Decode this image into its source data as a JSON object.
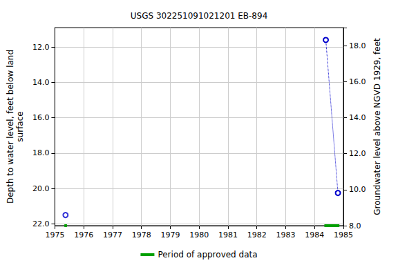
{
  "chart_data": {
    "type": "scatter",
    "title": "USGS 302251091021201 EB-894",
    "y_label": "Depth to water level, feet below land\nsurface",
    "y2_label": "Groundwater level above NGVD 1929, feet",
    "xlim": [
      1975,
      1985
    ],
    "xticks": [
      1975,
      1976,
      1977,
      1978,
      1979,
      1980,
      1981,
      1982,
      1983,
      1984,
      1985
    ],
    "ylim": [
      10.9,
      22.1
    ],
    "yticks": [
      {
        "value": 12,
        "label": "12.0"
      },
      {
        "value": 14,
        "label": "14.0"
      },
      {
        "value": 16,
        "label": "16.0"
      },
      {
        "value": 18,
        "label": "18.0"
      },
      {
        "value": 20,
        "label": "20.0"
      },
      {
        "value": 22,
        "label": "22.0"
      }
    ],
    "y2lim": [
      8,
      19
    ],
    "y2ticks": [
      {
        "value": 8,
        "label": "8.0"
      },
      {
        "value": 10,
        "label": "10.0"
      },
      {
        "value": 12,
        "label": "12.0"
      },
      {
        "value": 14,
        "label": "14.0"
      },
      {
        "value": 16,
        "label": "16.0"
      },
      {
        "value": 18,
        "label": "18.0"
      }
    ],
    "grid": true,
    "legend": "bottom",
    "series": [
      {
        "x": [
          1975.37
        ],
        "values": [
          21.5
        ],
        "color": "#0000cc",
        "marker": "circle"
      },
      {
        "x": [
          1984.39,
          1984.81
        ],
        "values": [
          11.6,
          20.25
        ],
        "color": "#0000cc",
        "marker": "circle",
        "line_style": "dotted"
      }
    ],
    "approved": {
      "name": "Period of approved data",
      "color": "#00a000",
      "periods": [
        [
          1975.33,
          1975.42
        ],
        [
          1984.34,
          1984.86
        ]
      ]
    }
  }
}
